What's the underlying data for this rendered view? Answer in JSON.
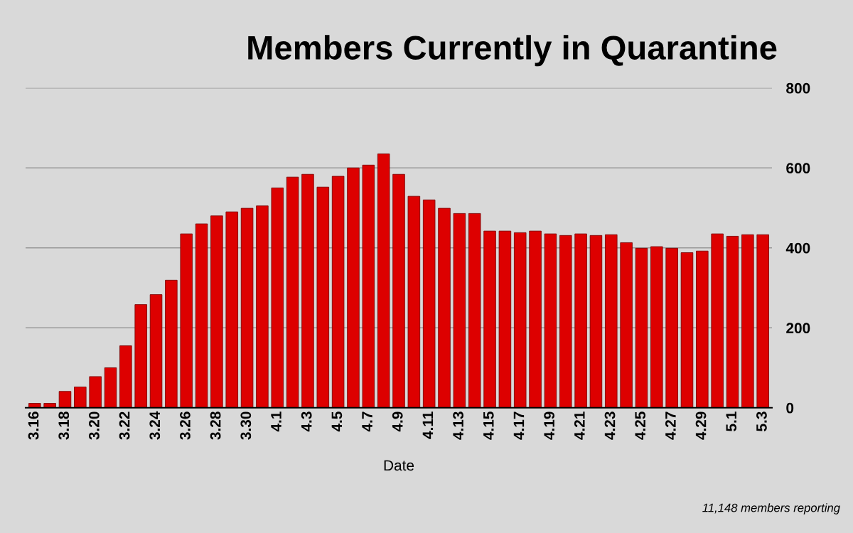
{
  "chart_data": {
    "type": "bar",
    "title": "Members Currently in Quarantine",
    "xlabel": "Date",
    "categories": [
      "3.16",
      null,
      "3.18",
      null,
      "3.20",
      null,
      "3.22",
      null,
      "3.24",
      null,
      "3.26",
      null,
      "3.28",
      null,
      "3.30",
      null,
      "4.1",
      null,
      "4.3",
      null,
      "4.5",
      null,
      "4.7",
      null,
      "4.9",
      null,
      "4.11",
      null,
      "4.13",
      null,
      "4.15",
      null,
      "4.17",
      null,
      "4.19",
      null,
      "4.21",
      null,
      "4.23",
      null,
      "4.25",
      null,
      "4.27",
      null,
      "4.29",
      null,
      "5.1",
      null,
      "5.3"
    ],
    "values": [
      11,
      11,
      41,
      52,
      78,
      100,
      155,
      258,
      283,
      319,
      435,
      460,
      480,
      490,
      499,
      505,
      550,
      577,
      584,
      552,
      579,
      600,
      607,
      635,
      584,
      529,
      520,
      499,
      486,
      486,
      442,
      442,
      438,
      442,
      435,
      431,
      435,
      431,
      433,
      413,
      399,
      403,
      399,
      388,
      392,
      435,
      429,
      433,
      433
    ],
    "color": "#dd0000",
    "ylim": [
      0,
      800
    ],
    "yticks": [
      0,
      200,
      400,
      600,
      800
    ],
    "grid": "y",
    "annotations": [
      "11,148 members reporting"
    ]
  }
}
